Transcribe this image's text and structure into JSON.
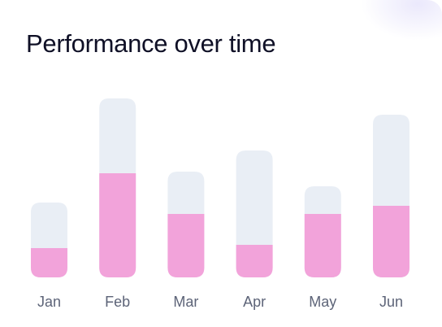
{
  "title": "Performance over time",
  "colors": {
    "track": "#e9eef5",
    "value": "#f2a3da",
    "label": "#5d6478",
    "title": "#0f1026"
  },
  "chart_data": {
    "type": "bar",
    "title": "Performance over time",
    "categories": [
      "Jan",
      "Feb",
      "Mar",
      "Apr",
      "May",
      "Jun"
    ],
    "series": [
      {
        "role": "total",
        "values": [
          46,
          110,
          65,
          78,
          56,
          100
        ]
      },
      {
        "role": "value",
        "values": [
          18,
          64,
          39,
          20,
          39,
          44
        ]
      }
    ],
    "ylim": [
      0,
      110
    ],
    "grid": false,
    "legend": "none"
  }
}
